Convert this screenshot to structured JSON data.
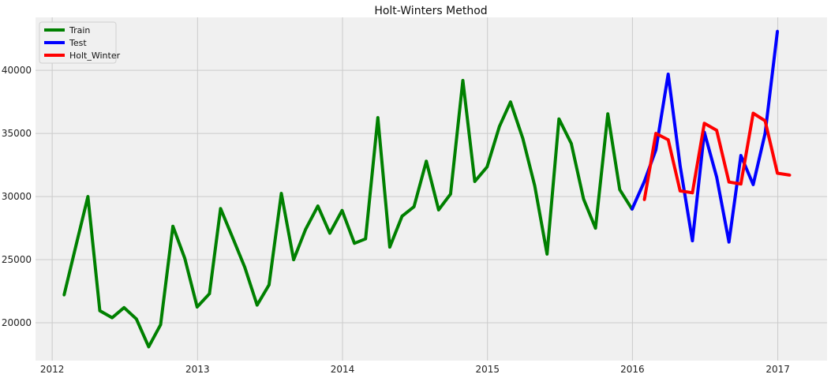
{
  "chart_data": {
    "type": "line",
    "title": "Holt-Winters Method",
    "xlabel": "",
    "ylabel": "",
    "xlim": [
      "2011-11-20",
      "2017-05-05"
    ],
    "ylim": [
      17000,
      44200
    ],
    "x_ticks": [
      "2012",
      "2013",
      "2014",
      "2015",
      "2016",
      "2017"
    ],
    "y_ticks": [
      20000,
      25000,
      30000,
      35000,
      40000
    ],
    "grid": true,
    "legend_position": "top-left",
    "series": [
      {
        "name": "Train",
        "color": "#008000",
        "points": [
          [
            "2012-01-31",
            22200
          ],
          [
            "2012-02-29",
            26000
          ],
          [
            "2012-03-31",
            30000
          ],
          [
            "2012-04-30",
            20950
          ],
          [
            "2012-05-31",
            20400
          ],
          [
            "2012-06-30",
            21200
          ],
          [
            "2012-07-31",
            20300
          ],
          [
            "2012-08-31",
            18100
          ],
          [
            "2012-09-30",
            19850
          ],
          [
            "2012-10-31",
            27650
          ],
          [
            "2012-11-30",
            25100
          ],
          [
            "2012-12-31",
            21250
          ],
          [
            "2013-01-31",
            22300
          ],
          [
            "2013-02-28",
            29050
          ],
          [
            "2013-03-31",
            26700
          ],
          [
            "2013-04-30",
            24400
          ],
          [
            "2013-05-31",
            21400
          ],
          [
            "2013-06-30",
            23000
          ],
          [
            "2013-07-31",
            30250
          ],
          [
            "2013-08-31",
            25000
          ],
          [
            "2013-09-30",
            27400
          ],
          [
            "2013-10-31",
            29250
          ],
          [
            "2013-11-30",
            27100
          ],
          [
            "2013-12-31",
            28900
          ],
          [
            "2014-01-31",
            26300
          ],
          [
            "2014-02-28",
            26650
          ],
          [
            "2014-03-31",
            36250
          ],
          [
            "2014-04-30",
            26000
          ],
          [
            "2014-05-31",
            28450
          ],
          [
            "2014-06-30",
            29200
          ],
          [
            "2014-07-31",
            32800
          ],
          [
            "2014-08-31",
            28950
          ],
          [
            "2014-09-30",
            30200
          ],
          [
            "2014-10-31",
            39200
          ],
          [
            "2014-11-30",
            31200
          ],
          [
            "2014-12-31",
            32350
          ],
          [
            "2015-01-31",
            35550
          ],
          [
            "2015-02-28",
            37500
          ],
          [
            "2015-03-31",
            34600
          ],
          [
            "2015-04-30",
            30850
          ],
          [
            "2015-05-31",
            25450
          ],
          [
            "2015-06-30",
            36150
          ],
          [
            "2015-07-31",
            34200
          ],
          [
            "2015-08-31",
            29800
          ],
          [
            "2015-09-30",
            27500
          ],
          [
            "2015-10-31",
            36550
          ],
          [
            "2015-11-30",
            30550
          ],
          [
            "2015-12-31",
            29000
          ]
        ]
      },
      {
        "name": "Test",
        "color": "#0000ff",
        "points": [
          [
            "2015-12-31",
            29000
          ],
          [
            "2016-01-31",
            31200
          ],
          [
            "2016-02-29",
            33700
          ],
          [
            "2016-03-31",
            39700
          ],
          [
            "2016-04-30",
            32450
          ],
          [
            "2016-05-31",
            26500
          ],
          [
            "2016-06-30",
            35100
          ],
          [
            "2016-07-31",
            31550
          ],
          [
            "2016-08-31",
            26400
          ],
          [
            "2016-09-30",
            33250
          ],
          [
            "2016-10-31",
            30950
          ],
          [
            "2016-11-30",
            35000
          ],
          [
            "2016-12-31",
            43100
          ]
        ]
      },
      {
        "name": "Holt_Winter",
        "color": "#ff0000",
        "points": [
          [
            "2016-01-31",
            29750
          ],
          [
            "2016-02-29",
            35000
          ],
          [
            "2016-03-31",
            34500
          ],
          [
            "2016-04-30",
            30450
          ],
          [
            "2016-05-31",
            30300
          ],
          [
            "2016-06-30",
            35800
          ],
          [
            "2016-07-31",
            35250
          ],
          [
            "2016-08-31",
            31150
          ],
          [
            "2016-09-30",
            31000
          ],
          [
            "2016-10-31",
            36600
          ],
          [
            "2016-11-30",
            36000
          ],
          [
            "2016-12-31",
            31850
          ],
          [
            "2017-01-31",
            31700
          ]
        ]
      }
    ]
  }
}
